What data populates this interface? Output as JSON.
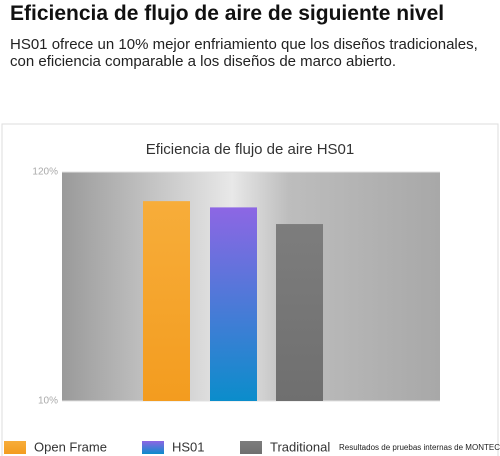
{
  "heading": "Eficiencia de flujo de aire de siguiente nivel",
  "description": "HS01 ofrece un 10% mejor enfriamiento que los diseños tradicionales, con eficiencia comparable a los diseños de marco abierto.",
  "chart_data": {
    "type": "bar",
    "title": "Eficiencia de flujo de aire HS01",
    "categories": [
      "Open Frame",
      "HS01",
      "Traditional"
    ],
    "values": [
      106,
      103,
      95
    ],
    "colors": [
      [
        "#f7ad3a",
        "#f39c1f"
      ],
      [
        "#8d66e4",
        "#0b8dcb"
      ],
      [
        "#7d7d7d",
        "#6f6f6f"
      ]
    ],
    "ylim": [
      10,
      120
    ],
    "yticks": [
      {
        "value": 10,
        "label": "10%"
      },
      {
        "value": 120,
        "label": "120%"
      }
    ],
    "grid": true,
    "note": "Resultados de pruebas internas de MONTECH"
  }
}
